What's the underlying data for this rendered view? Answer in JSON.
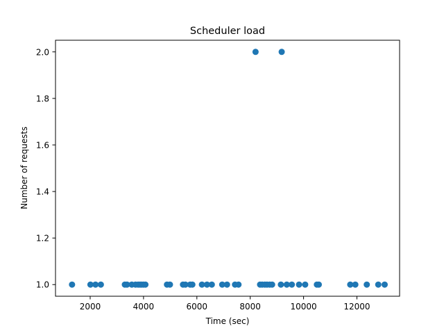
{
  "chart_data": {
    "type": "scatter",
    "title": "Scheduler load",
    "xlabel": "Time (sec)",
    "ylabel": "Number of requests",
    "xlim": [
      700,
      13600
    ],
    "ylim": [
      0.95,
      2.05
    ],
    "xticks": [
      2000,
      4000,
      6000,
      8000,
      10000,
      12000
    ],
    "xtick_labels": [
      "2000",
      "4000",
      "6000",
      "8000",
      "10000",
      "12000"
    ],
    "yticks": [
      1.0,
      1.2,
      1.4,
      1.6,
      1.8,
      2.0
    ],
    "ytick_labels": [
      "1.0",
      "1.2",
      "1.4",
      "1.6",
      "1.8",
      "2.0"
    ],
    "grid": false,
    "marker_color": "#1f77b4",
    "series": [
      {
        "x": [
          1320,
          2010,
          2200,
          2400,
          3300,
          3380,
          3560,
          3700,
          3800,
          3870,
          3930,
          4000,
          4070,
          4880,
          4990,
          5480,
          5570,
          5750,
          5830,
          6190,
          6380,
          6560,
          6950,
          7130,
          7430,
          7560,
          8370,
          8450,
          8550,
          8630,
          8730,
          8820,
          9150,
          9370,
          9560,
          9830,
          10060,
          10500,
          10570,
          11750,
          11940,
          12370,
          12800,
          13040,
          8200,
          9180
        ],
        "y": [
          1,
          1,
          1,
          1,
          1,
          1,
          1,
          1,
          1,
          1,
          1,
          1,
          1,
          1,
          1,
          1,
          1,
          1,
          1,
          1,
          1,
          1,
          1,
          1,
          1,
          1,
          1,
          1,
          1,
          1,
          1,
          1,
          1,
          1,
          1,
          1,
          1,
          1,
          1,
          1,
          1,
          1,
          1,
          1,
          2,
          2
        ]
      }
    ]
  }
}
